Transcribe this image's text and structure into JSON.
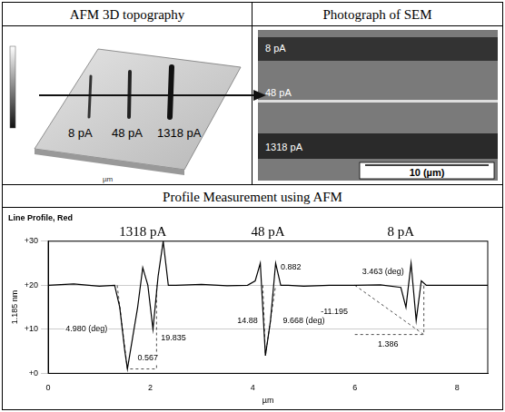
{
  "headers": {
    "top_left": "AFM 3D topography",
    "top_right": "Photograph of SEM",
    "bottom": "Profile Measurement using AFM"
  },
  "afm_3d": {
    "line_labels": [
      "8 pA",
      "48 pA",
      "1318 pA"
    ],
    "axis_label": "µm"
  },
  "sem": {
    "line_labels": [
      "8 pA",
      "48 pA",
      "1318 pA"
    ],
    "scale_bar": "10 (µm)"
  },
  "chart_data": {
    "type": "line",
    "title": "Line Profile, Red",
    "x_label": "µm",
    "y_label": "1.185 nm",
    "x": [
      0,
      0.5,
      1.0,
      1.3,
      1.4,
      1.5,
      1.55,
      1.65,
      1.75,
      1.85,
      1.95,
      2.05,
      2.15,
      2.25,
      2.35,
      2.5,
      3.0,
      3.5,
      3.9,
      4.05,
      4.15,
      4.25,
      4.35,
      4.45,
      4.55,
      4.7,
      5.0,
      5.5,
      6.0,
      6.5,
      6.9,
      7.0,
      7.1,
      7.2,
      7.3,
      7.4,
      7.6,
      8.0,
      8.6
    ],
    "values": [
      20,
      20.3,
      19.8,
      20,
      15,
      5,
      1,
      8,
      15,
      24,
      20,
      10,
      22,
      30,
      20,
      20,
      20.2,
      19.9,
      20,
      21,
      25,
      4,
      12,
      25,
      20,
      20,
      19.8,
      20,
      20,
      20.1,
      19.5,
      15,
      25,
      12,
      21,
      20,
      20,
      20,
      20
    ],
    "color": "#000000",
    "xlim": [
      0,
      8.6
    ],
    "xticks": [
      0,
      2,
      4,
      6,
      8
    ],
    "ylim": [
      0,
      30
    ],
    "yticks": [
      {
        "value": 0,
        "label": "+0"
      },
      {
        "value": 10,
        "label": "+10"
      },
      {
        "value": 20,
        "label": "+20"
      },
      {
        "value": 30,
        "label": "+30"
      }
    ],
    "grid": true,
    "group_labels": [
      {
        "text": "1318 pA",
        "x": 1.85
      },
      {
        "text": "48 pA",
        "x": 4.3
      },
      {
        "text": "8 pA",
        "x": 6.9
      }
    ],
    "annotations": [
      {
        "text": "4.980 (deg)",
        "x": 0.75,
        "y": 10
      },
      {
        "text": "0.567",
        "x": 1.95,
        "y": 3.5
      },
      {
        "text": "19.835",
        "x": 2.45,
        "y": 8
      },
      {
        "text": "14.88",
        "x": 3.9,
        "y": 12
      },
      {
        "text": "0.882",
        "x": 4.75,
        "y": 24
      },
      {
        "text": "9.668 (deg)",
        "x": 5.0,
        "y": 12
      },
      {
        "text": "-11.195",
        "x": 5.6,
        "y": 14
      },
      {
        "text": "3.463 (deg)",
        "x": 6.55,
        "y": 23
      },
      {
        "text": "1.386",
        "x": 6.65,
        "y": 6.5
      }
    ],
    "measure_lines": [
      {
        "x": [
          1.35,
          1.55,
          2.12,
          2.12
        ],
        "y": [
          20,
          1,
          1,
          20
        ]
      },
      {
        "x": [
          4.2,
          4.25,
          4.45
        ],
        "y": [
          20,
          4,
          20
        ]
      },
      {
        "x": [
          6.0,
          7.35,
          7.35
        ],
        "y": [
          20,
          8.8,
          20
        ]
      },
      {
        "x": [
          6.0,
          7.35
        ],
        "y": [
          8.8,
          8.8
        ]
      }
    ]
  }
}
